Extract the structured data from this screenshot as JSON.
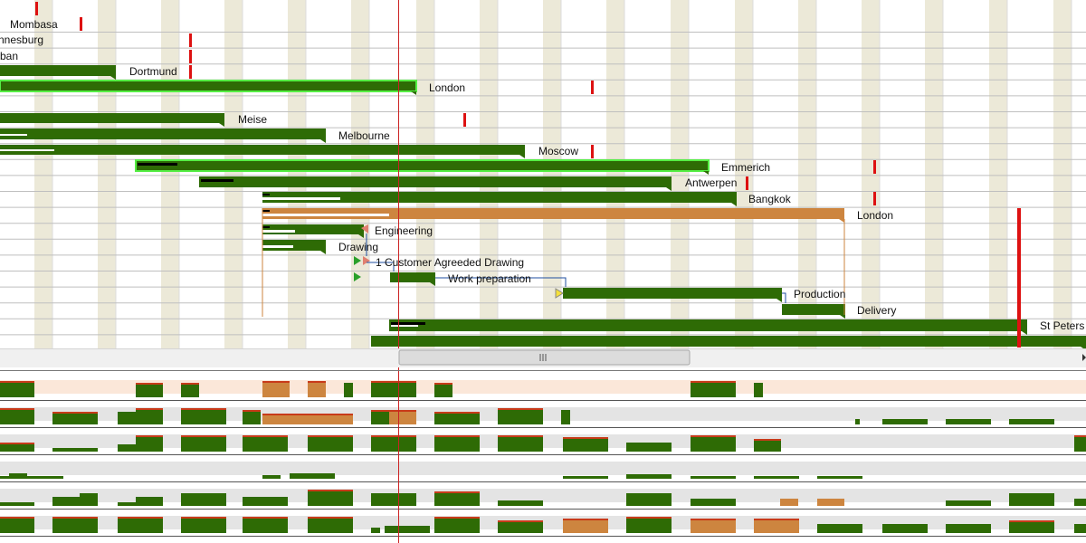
{
  "colors": {
    "bar": "#2e6b05",
    "bar_selected_outline": "#55ee44",
    "bar_light": "#4a9a1a",
    "summary": "#cd853f",
    "weekend": "#ece9d8",
    "today": "#cc2222",
    "marker": "#dd1111",
    "load_bg": "#e4e4e4",
    "load_over": "#c83b1a",
    "load_peach": "#fbe7d9"
  },
  "gantt": {
    "tasks": [
      {
        "label": "Mombasa"
      },
      {
        "label": "nnesburg"
      },
      {
        "label": "ban"
      },
      {
        "label": "Dortmund"
      },
      {
        "label": "London"
      },
      {
        "label": "Meise"
      },
      {
        "label": "Melbourne"
      },
      {
        "label": "Moscow"
      },
      {
        "label": "Emmerich"
      },
      {
        "label": "Antwerpen"
      },
      {
        "label": "Bangkok"
      },
      {
        "label": "London"
      },
      {
        "label": "Engineering"
      },
      {
        "label": "Drawing"
      },
      {
        "label": "1 Customer  Agreeded Drawing"
      },
      {
        "label": "Work preparation"
      },
      {
        "label": "Production"
      },
      {
        "label": "Delivery"
      },
      {
        "label": "St Peters"
      }
    ]
  },
  "scrollbar": {
    "grip_icon": "grip-lines-icon",
    "right_arrow_icon": "triangle-right-icon"
  },
  "load_panel": {
    "rows": 6
  }
}
